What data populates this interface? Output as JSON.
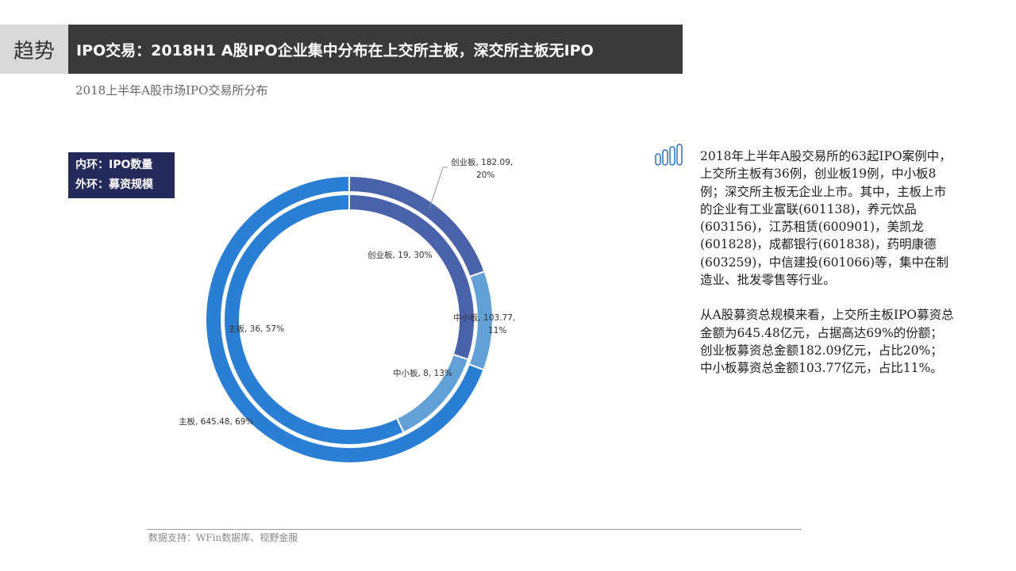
{
  "header": {
    "tag": "趋势",
    "title": "IPO交易：2018H1 A股IPO企业集中分布在上交所主板，深交所主板无IPO"
  },
  "subtitle": "2018上半年A股市场IPO交易所分布",
  "legend": {
    "inner": "内环：IPO数量",
    "outer": "外环：募资规模"
  },
  "chart_data": {
    "type": "pie",
    "title": "2018上半年A股市场IPO交易所分布",
    "categories": [
      "创业板",
      "中小板",
      "主板"
    ],
    "colors": [
      "#4a62aa",
      "#63a0d6",
      "#2a7fd4"
    ],
    "series": [
      {
        "name": "内环：IPO数量",
        "values": [
          19,
          8,
          36
        ],
        "labels": [
          "创业板, 19, 30%",
          "中小板, 8, 13%",
          "主板, 36, 57%"
        ]
      },
      {
        "name": "外环：募资规模",
        "values": [
          182.09,
          103.77,
          645.48
        ],
        "labels": [
          "创业板, 182.09,|20%",
          "中小板, 103.77,|11%",
          "主板, 645.48, 69%"
        ]
      }
    ]
  },
  "body": {
    "p1": "2018年上半年A股交易所的63起IPO案例中，上交所主板有36例，创业板19例，中小板8例；深交所主板无企业上市。其中，主板上市的企业有工业富联(601138)，养元饮品(603156)，江苏租赁(600901)，美凯龙(601828)，成都银行(601838)，药明康德(603259)，中信建投(601066)等，集中在制造业、批发零售等行业。",
    "p2": "从A股募资总规模来看，上交所主板IPO募资总金额为645.48亿元，占据高达69%的份额；创业板募资总金额182.09亿元，占比20%；中小板募资总金额103.77亿元，占比11%。"
  },
  "source": "数据支持：WFin数据库、视野金服"
}
